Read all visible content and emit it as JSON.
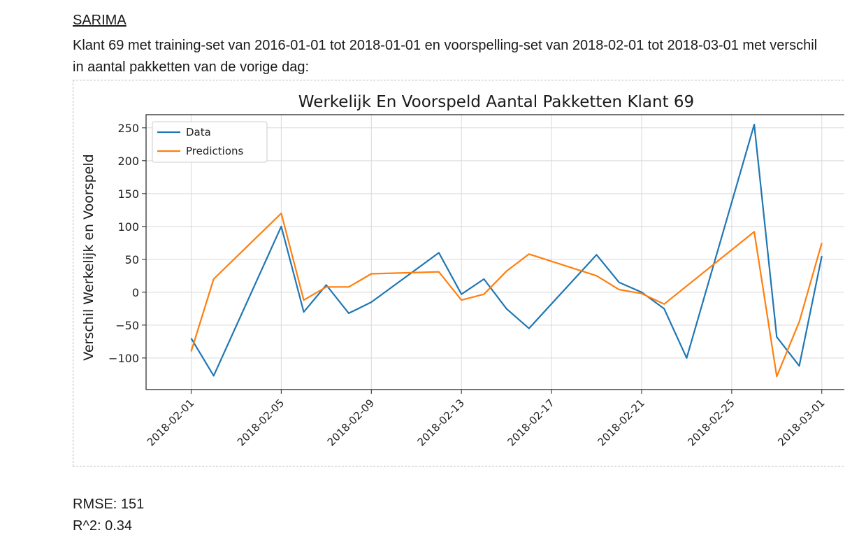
{
  "heading": "SARIMA",
  "description": "Klant 69 met training-set van 2016-01-01 tot 2018-01-01 en voorspelling-set van 2018-02-01 tot 2018-03-01 met verschil in aantal pakketten van de vorige dag:",
  "metrics": {
    "rmse": "RMSE: 151",
    "r2": "R^2: 0.34"
  },
  "chart_data": {
    "type": "line",
    "title": "Werkelijk En Voorspeld Aantal Pakketten Klant 69",
    "xlabel": "",
    "ylabel": "Verschil Werkelijk en Voorspeld",
    "ylim": [
      -148,
      270
    ],
    "yticks": [
      -100,
      -50,
      0,
      50,
      100,
      150,
      200,
      250
    ],
    "ytick_labels": [
      "−100",
      "−50",
      "0",
      "50",
      "100",
      "150",
      "200",
      "250"
    ],
    "xlim": [
      "2018-01-30",
      "2018-03-02"
    ],
    "xticks": [
      "2018-02-01",
      "2018-02-05",
      "2018-02-09",
      "2018-02-13",
      "2018-02-17",
      "2018-02-21",
      "2018-02-25",
      "2018-03-01"
    ],
    "grid": true,
    "legend": "top-left",
    "colors": {
      "Data": "#1f77b4",
      "Predictions": "#ff7f0e"
    },
    "series": [
      {
        "name": "Data",
        "points": [
          [
            "2018-02-01",
            -70
          ],
          [
            "2018-02-02",
            -127
          ],
          [
            "2018-02-05",
            100
          ],
          [
            "2018-02-06",
            -30
          ],
          [
            "2018-02-07",
            11
          ],
          [
            "2018-02-08",
            -32
          ],
          [
            "2018-02-09",
            -15
          ],
          [
            "2018-02-12",
            60
          ],
          [
            "2018-02-13",
            -3
          ],
          [
            "2018-02-14",
            20
          ],
          [
            "2018-02-15",
            -25
          ],
          [
            "2018-02-16",
            -55
          ],
          [
            "2018-02-19",
            57
          ],
          [
            "2018-02-20",
            15
          ],
          [
            "2018-02-21",
            0
          ],
          [
            "2018-02-22",
            -25
          ],
          [
            "2018-02-23",
            -100
          ],
          [
            "2018-02-26",
            255
          ],
          [
            "2018-02-27",
            -68
          ],
          [
            "2018-02-28",
            -112
          ],
          [
            "2018-03-01",
            55
          ]
        ]
      },
      {
        "name": "Predictions",
        "points": [
          [
            "2018-02-01",
            -90
          ],
          [
            "2018-02-02",
            20
          ],
          [
            "2018-02-05",
            120
          ],
          [
            "2018-02-06",
            -12
          ],
          [
            "2018-02-07",
            8
          ],
          [
            "2018-02-08",
            8
          ],
          [
            "2018-02-09",
            28
          ],
          [
            "2018-02-12",
            31
          ],
          [
            "2018-02-13",
            -12
          ],
          [
            "2018-02-14",
            -3
          ],
          [
            "2018-02-15",
            32
          ],
          [
            "2018-02-16",
            58
          ],
          [
            "2018-02-19",
            25
          ],
          [
            "2018-02-20",
            4
          ],
          [
            "2018-02-21",
            -2
          ],
          [
            "2018-02-22",
            -18
          ],
          [
            "2018-02-26",
            92
          ],
          [
            "2018-02-27",
            -128
          ],
          [
            "2018-02-28",
            -45
          ],
          [
            "2018-03-01",
            75
          ]
        ]
      }
    ]
  }
}
